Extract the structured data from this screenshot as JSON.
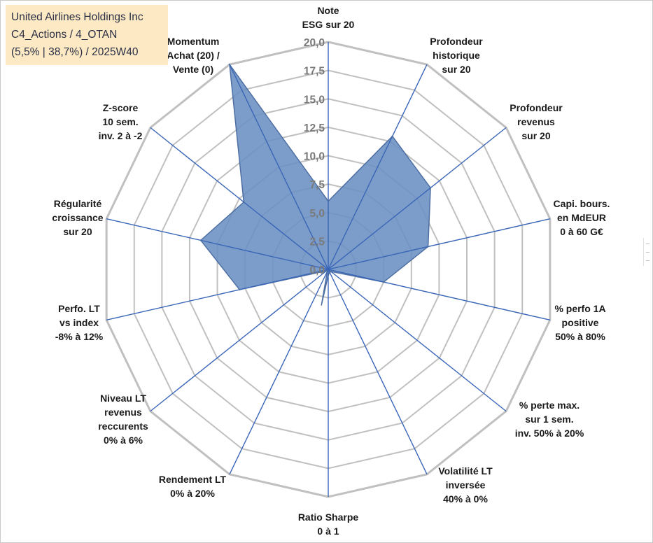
{
  "title_box": {
    "line1": "United Airlines Holdings Inc",
    "line2": "C4_Actions / 4_OTAN",
    "line3": "(5,5% | 38,7%) / 2025W40"
  },
  "colors": {
    "fill": "#6a8fc2",
    "stroke": "#4e6fa3",
    "spokes": "#3a66b8",
    "grid": "#c0c0c0",
    "title_bg": "#fde9c4"
  },
  "chart_data": {
    "type": "radar",
    "title": "United Airlines Holdings Inc",
    "rmin": 0,
    "rmax": 20,
    "ticks": [
      "0,0",
      "2,5",
      "5,0",
      "7,5",
      "10,0",
      "12,5",
      "15,0",
      "17,5",
      "20,0"
    ],
    "tick_values": [
      0,
      2.5,
      5,
      7.5,
      10,
      12.5,
      15,
      17.5,
      20
    ],
    "axes": [
      {
        "label": [
          "Note",
          "ESG sur 20"
        ],
        "value": 6
      },
      {
        "label": [
          "Profondeur",
          "historique",
          "sur 20"
        ],
        "value": 13
      },
      {
        "label": [
          "Profondeur",
          "revenus",
          "sur 20"
        ],
        "value": 11.5
      },
      {
        "label": [
          "Capi. bours.",
          "en MdEUR",
          "0 à 60 G€"
        ],
        "value": 9
      },
      {
        "label": [
          "% perfo 1A",
          "positive",
          "50% à 80%"
        ],
        "value": 5
      },
      {
        "label": [
          "% perte max.",
          "sur 1 sem.",
          "inv. 50% à 20%"
        ],
        "value": 0.3
      },
      {
        "label": [
          "Volatilité LT",
          "inversée",
          "40% à 0%"
        ],
        "value": 0.3
      },
      {
        "label": [
          "Ratio Sharpe",
          "0 à 1"
        ],
        "value": 0.5
      },
      {
        "label": [
          "Rendement LT",
          "0% à 20%"
        ],
        "value": 0.2
      },
      {
        "label": [
          "Niveau LT",
          "revenus",
          "reccurents",
          "0% à 6%"
        ],
        "value": 0.2
      },
      {
        "label": [
          "Perfo. LT",
          "vs index",
          "-8% à 12%"
        ],
        "value": 8
      },
      {
        "label": [
          "Régularité",
          "croissance",
          "sur 20"
        ],
        "value": 11.5
      },
      {
        "label": [
          "Z-score",
          "10 sem.",
          "inv. 2 à -2"
        ],
        "value": 9.5
      },
      {
        "label": [
          "Momentum",
          "Achat (20) /",
          "Vente (0)"
        ],
        "value": 20
      }
    ],
    "extra_points": [
      {
        "between": [
          7,
          8
        ],
        "value": 3.2,
        "angle_offset": 0.42
      }
    ]
  }
}
